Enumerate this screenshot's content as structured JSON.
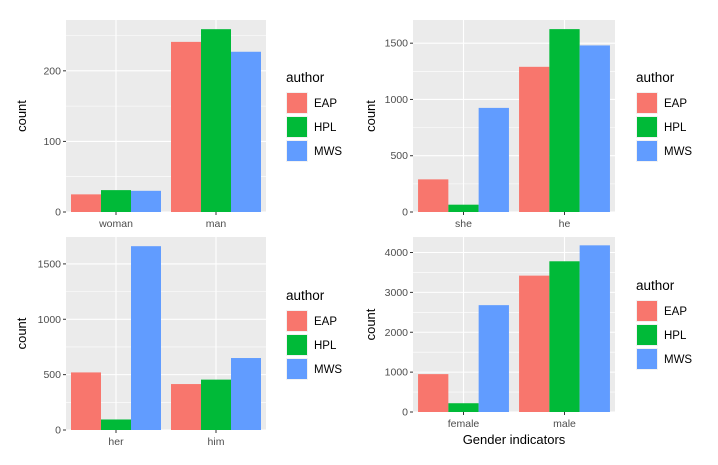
{
  "colors": {
    "EAP": "#F8766D",
    "HPL": "#00BA38",
    "MWS": "#619CFF",
    "panel_bg": "#EBEBEB",
    "grid": "#FFFFFF"
  },
  "chart_data": [
    {
      "type": "bar",
      "categories": [
        "woman",
        "man"
      ],
      "series": [
        {
          "name": "EAP",
          "values": [
            25,
            241
          ]
        },
        {
          "name": "HPL",
          "values": [
            31,
            259
          ]
        },
        {
          "name": "MWS",
          "values": [
            30,
            227
          ]
        }
      ],
      "xlabel": "",
      "ylabel": "count",
      "ylim": [
        0,
        272
      ],
      "yticks": [
        0,
        100,
        200
      ],
      "grid": true,
      "legend": {
        "title": "author",
        "placement": "right",
        "entries": [
          "EAP",
          "HPL",
          "MWS"
        ]
      }
    },
    {
      "type": "bar",
      "categories": [
        "she",
        "he"
      ],
      "series": [
        {
          "name": "EAP",
          "values": [
            290,
            1290
          ]
        },
        {
          "name": "HPL",
          "values": [
            65,
            1625
          ]
        },
        {
          "name": "MWS",
          "values": [
            925,
            1480
          ]
        }
      ],
      "xlabel": "",
      "ylabel": "count",
      "ylim": [
        0,
        1706
      ],
      "yticks": [
        0,
        500,
        1000,
        1500
      ],
      "grid": true,
      "legend": {
        "title": "author",
        "placement": "right",
        "entries": [
          "EAP",
          "HPL",
          "MWS"
        ]
      }
    },
    {
      "type": "bar",
      "categories": [
        "her",
        "him"
      ],
      "series": [
        {
          "name": "EAP",
          "values": [
            520,
            415
          ]
        },
        {
          "name": "HPL",
          "values": [
            95,
            455
          ]
        },
        {
          "name": "MWS",
          "values": [
            1660,
            650
          ]
        }
      ],
      "xlabel": "",
      "ylabel": "count",
      "ylim": [
        0,
        1743
      ],
      "yticks": [
        0,
        500,
        1000,
        1500
      ],
      "grid": true,
      "legend": {
        "title": "author",
        "placement": "right",
        "entries": [
          "EAP",
          "HPL",
          "MWS"
        ]
      }
    },
    {
      "type": "bar",
      "categories": [
        "female",
        "male"
      ],
      "series": [
        {
          "name": "EAP",
          "values": [
            950,
            3420
          ]
        },
        {
          "name": "HPL",
          "values": [
            220,
            3780
          ]
        },
        {
          "name": "MWS",
          "values": [
            2680,
            4180
          ]
        }
      ],
      "xlabel": "Gender indicators",
      "ylabel": "count",
      "ylim": [
        0,
        4389
      ],
      "yticks": [
        0,
        1000,
        2000,
        3000,
        4000
      ],
      "grid": true,
      "legend": {
        "title": "author",
        "placement": "right",
        "entries": [
          "EAP",
          "HPL",
          "MWS"
        ]
      }
    }
  ]
}
